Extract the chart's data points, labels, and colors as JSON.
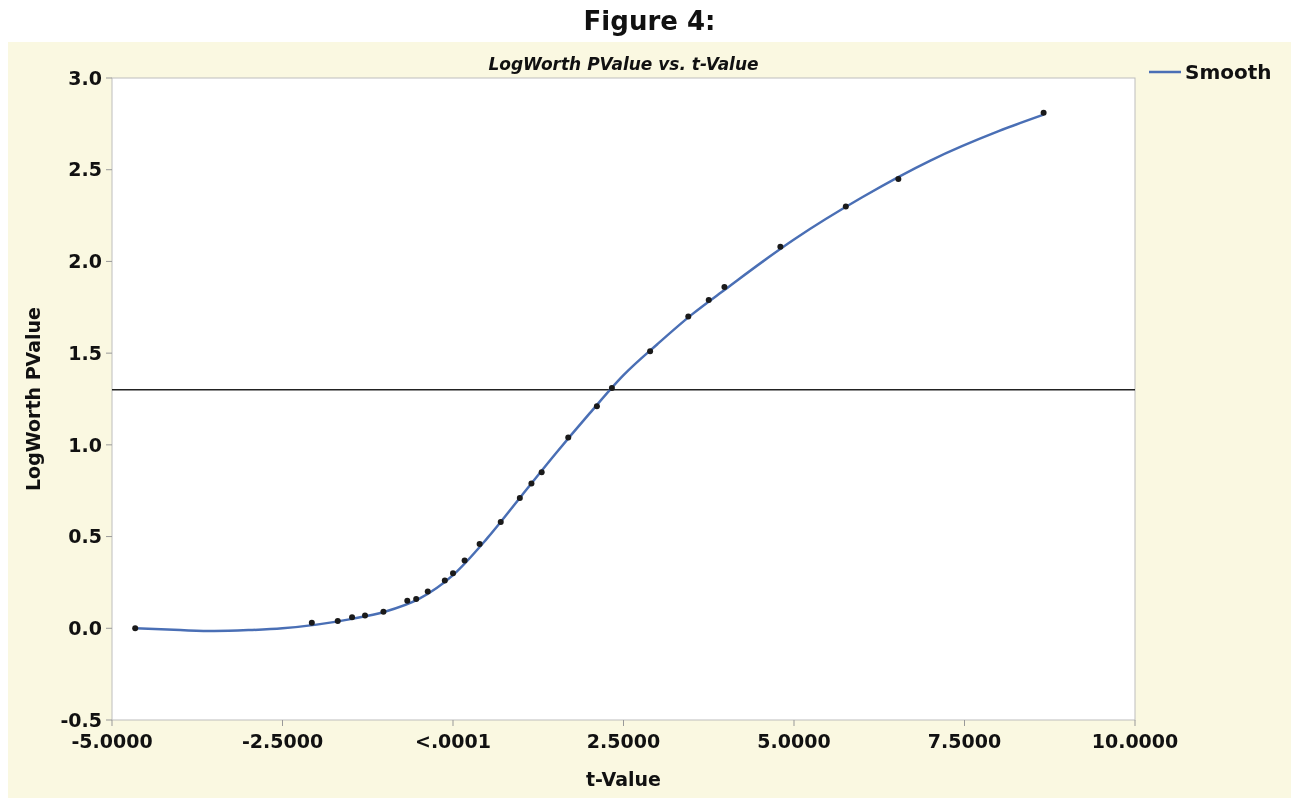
{
  "chart_data": {
    "type": "scatter",
    "title": "Figure 4:",
    "subtitle": "LogWorth PValue vs. t-Value",
    "xlabel": "t-Value",
    "ylabel": "LogWorth PValue",
    "xlim": [
      -5,
      10
    ],
    "xticks": [
      {
        "value": -5,
        "label": "-5.0000"
      },
      {
        "value": -2.5,
        "label": "-2.5000"
      },
      {
        "value": 0,
        "label": "<.0001"
      },
      {
        "value": 2.5,
        "label": "2.5000"
      },
      {
        "value": 5,
        "label": "5.0000"
      },
      {
        "value": 7.5,
        "label": "7.5000"
      },
      {
        "value": 10,
        "label": "10.0000"
      }
    ],
    "ylim": [
      -0.5,
      3
    ],
    "yticks": [
      {
        "value": -0.5,
        "label": "-0.5"
      },
      {
        "value": 0,
        "label": "0.0"
      },
      {
        "value": 0.5,
        "label": "0.5"
      },
      {
        "value": 1,
        "label": "1.0"
      },
      {
        "value": 1.5,
        "label": "1.5"
      },
      {
        "value": 2,
        "label": "2.0"
      },
      {
        "value": 2.5,
        "label": "2.5"
      },
      {
        "value": 3,
        "label": "3.0"
      }
    ],
    "legend": "top right",
    "ref_lines": [
      {
        "axis": "y",
        "value": 1.3,
        "color": "#222222"
      }
    ],
    "series": [
      {
        "color": "#1a1a1a",
        "marker": "circle",
        "x": [
          -4.66,
          -2.07,
          -1.69,
          -1.48,
          -1.29,
          -1.02,
          -0.67,
          -0.54,
          -0.37,
          -0.12,
          0.0,
          0.17,
          0.39,
          0.7,
          0.98,
          1.15,
          1.3,
          1.69,
          2.11,
          2.33,
          2.89,
          3.45,
          3.75,
          3.98,
          4.8,
          5.76,
          6.53,
          8.66
        ],
        "values": [
          0.0,
          0.03,
          0.04,
          0.06,
          0.07,
          0.09,
          0.15,
          0.16,
          0.2,
          0.26,
          0.3,
          0.37,
          0.46,
          0.58,
          0.71,
          0.79,
          0.85,
          1.04,
          1.21,
          1.31,
          1.51,
          1.7,
          1.79,
          1.86,
          2.08,
          2.3,
          2.45,
          2.81
        ]
      },
      {
        "type": "line",
        "name": "Smooth",
        "color": "#4a6fb5",
        "marker": "none",
        "x": [
          -4.66,
          -4,
          -3.5,
          -3,
          -2.5,
          -2,
          -1.5,
          -1,
          -0.5,
          0,
          0.5,
          1,
          1.5,
          2,
          2.5,
          3,
          3.5,
          4,
          5,
          6,
          7,
          8,
          8.66
        ],
        "values": [
          0.0,
          -0.01,
          -0.015,
          -0.01,
          0.0,
          0.02,
          0.05,
          0.09,
          0.16,
          0.29,
          0.49,
          0.72,
          0.95,
          1.17,
          1.38,
          1.55,
          1.71,
          1.85,
          2.12,
          2.35,
          2.55,
          2.71,
          2.8
        ]
      }
    ]
  }
}
